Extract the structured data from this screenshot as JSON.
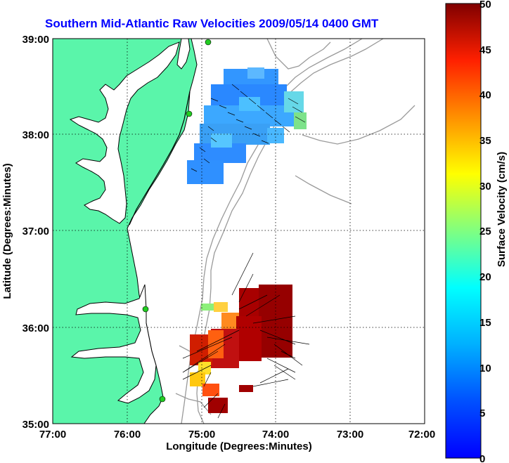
{
  "title": "Southern Mid-Atlantic Raw Velocities 2009/05/14 0400 GMT",
  "x_axis": {
    "label": "Longitude (Degrees:Minutes)",
    "ticks": [
      "77:00",
      "76:00",
      "75:00",
      "74:00",
      "73:00",
      "72:00"
    ]
  },
  "y_axis": {
    "label": "Latitude (Degrees:Minutes)",
    "ticks": [
      "39:00",
      "38:00",
      "37:00",
      "36:00",
      "35:00"
    ]
  },
  "colorbar": {
    "label": "Surface Velocity (cm/s)",
    "ticks": [
      "50",
      "45",
      "40",
      "35",
      "30",
      "25",
      "20",
      "15",
      "10",
      "5",
      "0"
    ],
    "min": 0,
    "max": 50
  },
  "colors": {
    "land": "#5af5aa",
    "title": "#0000ff",
    "bathymetry": "#9a9a9a",
    "station": "#22cc22"
  }
}
